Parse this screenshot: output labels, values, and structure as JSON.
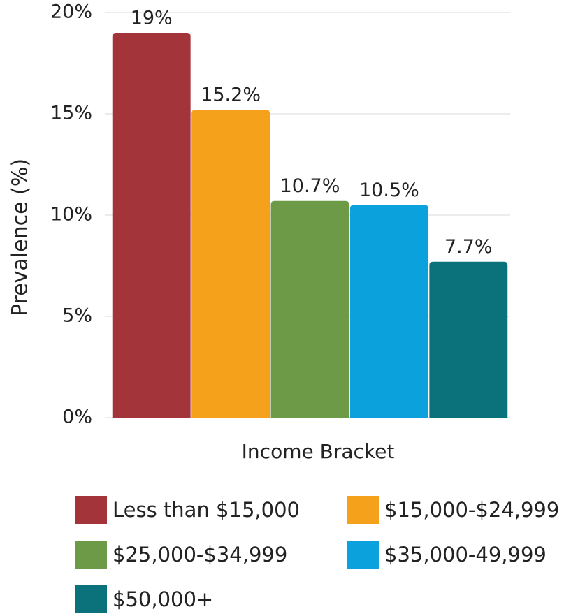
{
  "chart_data": {
    "type": "bar",
    "xlabel": "Income Bracket",
    "ylabel": "Prevalence (%)",
    "categories": [
      "Less than $15,000",
      "$15,000-$24,999",
      "$25,000-$34,999",
      "$35,000-49,999",
      "$50,000+"
    ],
    "values": [
      19,
      15.2,
      10.7,
      10.5,
      7.7
    ],
    "value_labels": [
      "19%",
      "15.2%",
      "10.7%",
      "10.5%",
      "7.7%"
    ],
    "colors": [
      "#a3343a",
      "#f5a11c",
      "#6d9a47",
      "#0aa1dd",
      "#0b717a"
    ],
    "ylim": [
      0,
      20
    ],
    "yticks": [
      {
        "value": 0,
        "label": "0%"
      },
      {
        "value": 5,
        "label": "5%"
      },
      {
        "value": 10,
        "label": "10%"
      },
      {
        "value": 15,
        "label": "15%"
      },
      {
        "value": 20,
        "label": "20%"
      }
    ],
    "grid": true
  }
}
